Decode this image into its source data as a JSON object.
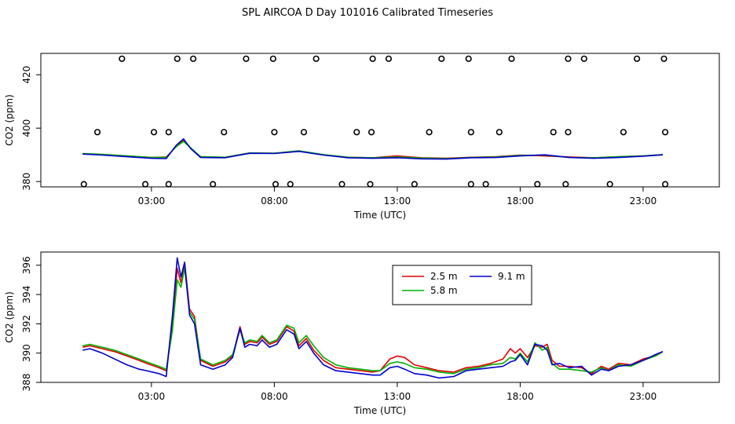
{
  "title": "SPL AIRCOA D  Day 101016  Calibrated Timeseries",
  "colors": {
    "red": "#e00000",
    "green": "#00b000",
    "blue": "#0000cc"
  },
  "chart_data": [
    {
      "type": "scatter",
      "name": "top",
      "xlabel": "Time (UTC)",
      "ylabel": "CO2 (ppm)",
      "xlim": [
        -1.5,
        26.1
      ],
      "ylim": [
        378,
        428
      ],
      "xticks": [
        3,
        8,
        13,
        18,
        23
      ],
      "xtick_labels": [
        "03:00",
        "08:00",
        "13:00",
        "18:00",
        "23:00"
      ],
      "yticks": [
        380,
        400,
        420
      ],
      "ytick_labels": [
        "380",
        "400",
        "420"
      ],
      "cal_points": {
        "high": {
          "y": 426,
          "x": [
            1.8,
            4.05,
            4.7,
            6.85,
            7.95,
            9.7,
            12.0,
            12.65,
            14.8,
            15.9,
            17.65,
            19.95,
            20.6,
            22.75,
            23.85
          ]
        },
        "mid": {
          "y": 398.5,
          "x": [
            0.8,
            3.1,
            3.7,
            5.95,
            8.0,
            9.2,
            11.35,
            11.95,
            14.3,
            16.0,
            17.15,
            19.35,
            19.95,
            22.2,
            23.9
          ]
        },
        "low": {
          "y": 379,
          "x": [
            0.25,
            2.75,
            3.7,
            5.5,
            8.05,
            8.65,
            10.75,
            11.9,
            13.7,
            16.0,
            16.6,
            18.7,
            19.85,
            21.65,
            23.9
          ]
        }
      },
      "series": [
        {
          "color_key": "red",
          "x": [
            0.2,
            1,
            2,
            3,
            3.6,
            4,
            4.3,
            4.6,
            5,
            6,
            7,
            8,
            9,
            10,
            11,
            12,
            13,
            14,
            15,
            16,
            17,
            18,
            19,
            20,
            21,
            22,
            23,
            23.8
          ],
          "y": [
            390.4,
            390.1,
            389.6,
            389.0,
            389.2,
            393,
            395.5,
            392.5,
            389.3,
            389.1,
            390.7,
            390.6,
            391.4,
            390.0,
            389.1,
            388.9,
            389.6,
            388.9,
            388.7,
            389.1,
            389.3,
            389.9,
            389.6,
            389.2,
            388.9,
            389.3,
            389.6,
            390.1
          ]
        },
        {
          "color_key": "green",
          "x": [
            0.2,
            1,
            2,
            3,
            3.6,
            4,
            4.3,
            4.6,
            5,
            6,
            7,
            8,
            9,
            10,
            11,
            12,
            13,
            14,
            15,
            16,
            17,
            18,
            19,
            20,
            21,
            22,
            23,
            23.8
          ],
          "y": [
            390.5,
            390.2,
            389.6,
            389.0,
            389.1,
            393,
            395.0,
            392.6,
            389.3,
            389.1,
            390.7,
            390.6,
            391.5,
            390.1,
            389.1,
            388.9,
            389.2,
            388.8,
            388.6,
            389.0,
            389.2,
            389.8,
            389.9,
            389.0,
            388.9,
            389.3,
            389.6,
            390.1
          ]
        },
        {
          "color_key": "blue",
          "x": [
            0.2,
            1,
            2,
            3,
            3.6,
            4,
            4.3,
            4.6,
            5,
            6,
            7,
            8,
            9,
            10,
            11,
            12,
            13,
            14,
            15,
            16,
            17,
            18,
            19,
            20,
            21,
            22,
            23,
            23.8
          ],
          "y": [
            390.3,
            389.9,
            389.3,
            388.7,
            388.6,
            393.5,
            396.0,
            392.3,
            389.0,
            388.9,
            390.6,
            390.5,
            391.3,
            389.9,
            388.9,
            388.7,
            388.9,
            388.5,
            388.4,
            388.9,
            389.0,
            389.6,
            390.0,
            389.0,
            388.7,
            389.0,
            389.5,
            390.0
          ]
        }
      ]
    },
    {
      "type": "line",
      "name": "bottom",
      "xlabel": "Time (UTC)",
      "ylabel": "CO2 (ppm)",
      "xlim": [
        -1.5,
        26.1
      ],
      "ylim": [
        388,
        396.9
      ],
      "xticks": [
        3,
        8,
        13,
        18,
        23
      ],
      "xtick_labels": [
        "03:00",
        "08:00",
        "13:00",
        "18:00",
        "23:00"
      ],
      "yticks": [
        388,
        390,
        392,
        394,
        396
      ],
      "ytick_labels": [
        "388",
        "390",
        "392",
        "394",
        "396"
      ],
      "legend": {
        "position": "top-center",
        "entries": [
          "2.5 m",
          "9.1 m",
          "5.8 m"
        ]
      },
      "series": [
        {
          "name": "2.5 m",
          "color_key": "red",
          "x": [
            0.2,
            0.5,
            1.0,
            1.5,
            2.0,
            2.5,
            2.8,
            3.3,
            3.6,
            3.85,
            4.05,
            4.2,
            4.35,
            4.55,
            4.75,
            5.0,
            5.5,
            6.0,
            6.3,
            6.6,
            6.8,
            7.0,
            7.3,
            7.5,
            7.8,
            8.1,
            8.5,
            8.8,
            9.0,
            9.3,
            9.6,
            10.0,
            10.5,
            11.0,
            11.5,
            12.0,
            12.3,
            12.7,
            13.0,
            13.3,
            13.7,
            14.2,
            14.7,
            15.3,
            15.8,
            16.3,
            16.8,
            17.3,
            17.6,
            17.8,
            18.0,
            18.3,
            18.6,
            18.9,
            19.1,
            19.3,
            19.6,
            20.0,
            20.5,
            20.9,
            21.3,
            21.6,
            22.0,
            22.5,
            23.0,
            23.5,
            23.8
          ],
          "y": [
            390.4,
            390.5,
            390.3,
            390.1,
            389.8,
            389.5,
            389.3,
            389.0,
            388.8,
            392.0,
            395.8,
            394.8,
            396.2,
            393.0,
            392.5,
            389.5,
            389.1,
            389.4,
            389.8,
            391.8,
            390.6,
            390.8,
            390.7,
            391.1,
            390.6,
            390.8,
            391.8,
            391.5,
            390.5,
            391.0,
            390.2,
            389.5,
            389.0,
            388.9,
            388.8,
            388.7,
            388.8,
            389.6,
            389.8,
            389.7,
            389.2,
            389.0,
            388.8,
            388.7,
            389.0,
            389.1,
            389.3,
            389.6,
            390.3,
            390.0,
            390.3,
            389.7,
            390.5,
            390.4,
            390.6,
            389.5,
            389.1,
            389.1,
            389.0,
            388.6,
            389.1,
            388.9,
            389.3,
            389.2,
            389.6,
            389.8,
            390.1
          ]
        },
        {
          "name": "5.8 m",
          "color_key": "green",
          "x": [
            0.2,
            0.5,
            1.0,
            1.5,
            2.0,
            2.5,
            2.8,
            3.3,
            3.6,
            3.85,
            4.05,
            4.2,
            4.35,
            4.55,
            4.75,
            5.0,
            5.5,
            6.0,
            6.3,
            6.6,
            6.8,
            7.0,
            7.3,
            7.5,
            7.8,
            8.1,
            8.5,
            8.8,
            9.0,
            9.3,
            9.6,
            10.0,
            10.5,
            11.0,
            11.5,
            12.0,
            12.3,
            12.7,
            13.0,
            13.3,
            13.7,
            14.2,
            14.7,
            15.3,
            15.8,
            16.3,
            16.8,
            17.3,
            17.6,
            17.8,
            18.0,
            18.3,
            18.6,
            18.9,
            19.1,
            19.3,
            19.6,
            20.0,
            20.5,
            20.9,
            21.3,
            21.6,
            22.0,
            22.5,
            23.0,
            23.5,
            23.8
          ],
          "y": [
            390.5,
            390.6,
            390.4,
            390.2,
            389.9,
            389.6,
            389.4,
            389.1,
            388.9,
            391.5,
            395.0,
            394.5,
            395.8,
            392.8,
            392.3,
            389.6,
            389.2,
            389.5,
            389.9,
            391.6,
            390.7,
            390.9,
            390.8,
            391.2,
            390.7,
            390.9,
            391.9,
            391.7,
            390.7,
            391.2,
            390.5,
            389.7,
            389.2,
            389.0,
            388.9,
            388.8,
            388.8,
            389.3,
            389.4,
            389.3,
            389.0,
            388.9,
            388.7,
            388.6,
            388.9,
            389.0,
            389.2,
            389.3,
            389.7,
            389.6,
            390.0,
            389.4,
            390.7,
            390.2,
            390.4,
            389.3,
            388.9,
            388.9,
            388.8,
            388.7,
            389.0,
            388.8,
            389.2,
            389.1,
            389.5,
            389.8,
            390.1
          ]
        },
        {
          "name": "9.1 m",
          "color_key": "blue",
          "x": [
            0.2,
            0.5,
            1.0,
            1.5,
            2.0,
            2.5,
            2.8,
            3.3,
            3.6,
            3.85,
            4.05,
            4.2,
            4.35,
            4.55,
            4.75,
            5.0,
            5.5,
            6.0,
            6.3,
            6.6,
            6.8,
            7.0,
            7.3,
            7.5,
            7.8,
            8.1,
            8.5,
            8.8,
            9.0,
            9.3,
            9.6,
            10.0,
            10.5,
            11.0,
            11.5,
            12.0,
            12.3,
            12.7,
            13.0,
            13.3,
            13.7,
            14.2,
            14.7,
            15.3,
            15.8,
            16.3,
            16.8,
            17.3,
            17.6,
            17.8,
            18.0,
            18.3,
            18.6,
            18.9,
            19.1,
            19.3,
            19.6,
            20.0,
            20.5,
            20.9,
            21.3,
            21.6,
            22.0,
            22.5,
            23.0,
            23.5,
            23.8
          ],
          "y": [
            390.2,
            390.3,
            390.0,
            389.6,
            389.2,
            388.9,
            388.8,
            388.6,
            388.4,
            392.5,
            396.5,
            395.2,
            396.2,
            392.6,
            392.0,
            389.2,
            388.9,
            389.2,
            389.7,
            391.7,
            390.4,
            390.6,
            390.5,
            390.9,
            390.4,
            390.6,
            391.6,
            391.3,
            390.3,
            390.8,
            390.0,
            389.2,
            388.8,
            388.7,
            388.6,
            388.5,
            388.5,
            389.0,
            389.1,
            388.9,
            388.6,
            388.5,
            388.3,
            388.4,
            388.8,
            388.9,
            389.0,
            389.1,
            389.4,
            389.5,
            389.9,
            389.2,
            390.6,
            390.5,
            390.2,
            389.2,
            389.3,
            389.0,
            389.1,
            388.5,
            388.9,
            388.8,
            389.1,
            389.2,
            389.5,
            389.9,
            390.1
          ]
        }
      ]
    }
  ]
}
